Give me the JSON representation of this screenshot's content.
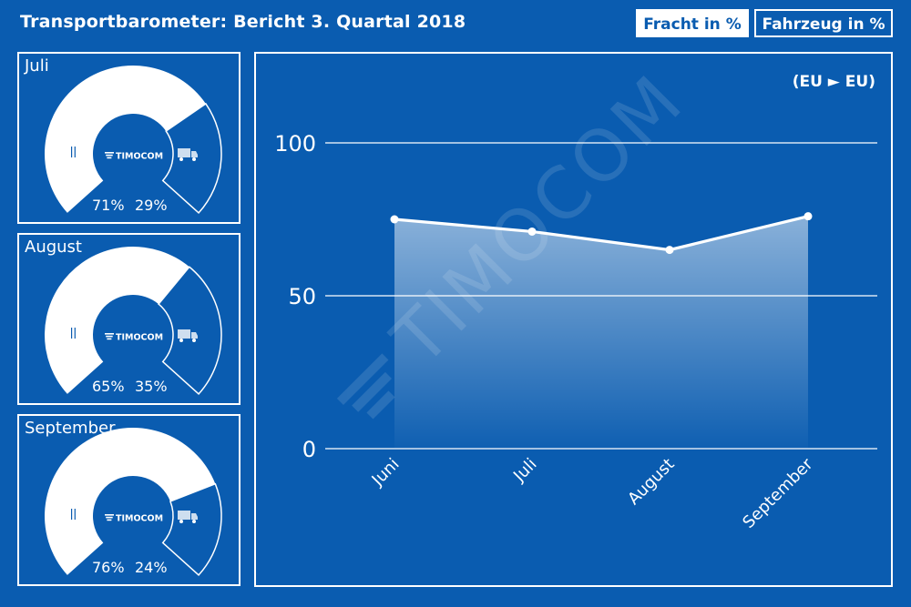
{
  "header": {
    "title": "Transportbarometer: Bericht 3. Quartal 2018",
    "tabs": [
      {
        "label": "Fracht in %",
        "active": true
      },
      {
        "label": "Fahrzeug in %",
        "active": false
      }
    ]
  },
  "colors": {
    "background": "#0a5cb0",
    "foreground": "#ffffff"
  },
  "gauges": [
    {
      "month": "Juli",
      "fracht_pct": 71,
      "fahrzeug_pct": 29,
      "fracht_label": "71%",
      "fahrzeug_label": "29%",
      "logo": "TIMOCOM"
    },
    {
      "month": "August",
      "fracht_pct": 65,
      "fahrzeug_pct": 35,
      "fracht_label": "65%",
      "fahrzeug_label": "35%",
      "logo": "TIMOCOM"
    },
    {
      "month": "September",
      "fracht_pct": 76,
      "fahrzeug_pct": 24,
      "fracht_label": "76%",
      "fahrzeug_label": "24%",
      "logo": "TIMOCOM"
    }
  ],
  "chart_data": {
    "type": "area",
    "region_label": "(EU ► EU)",
    "categories": [
      "Juni",
      "Juli",
      "August",
      "September"
    ],
    "series": [
      {
        "values": [
          75,
          71,
          65,
          76
        ]
      }
    ],
    "ylim": [
      0,
      100
    ],
    "yticks": [
      0,
      50,
      100
    ],
    "ytick_labels": [
      "0",
      "50",
      "100"
    ],
    "grid": true,
    "watermark": "TIMOCOM"
  }
}
